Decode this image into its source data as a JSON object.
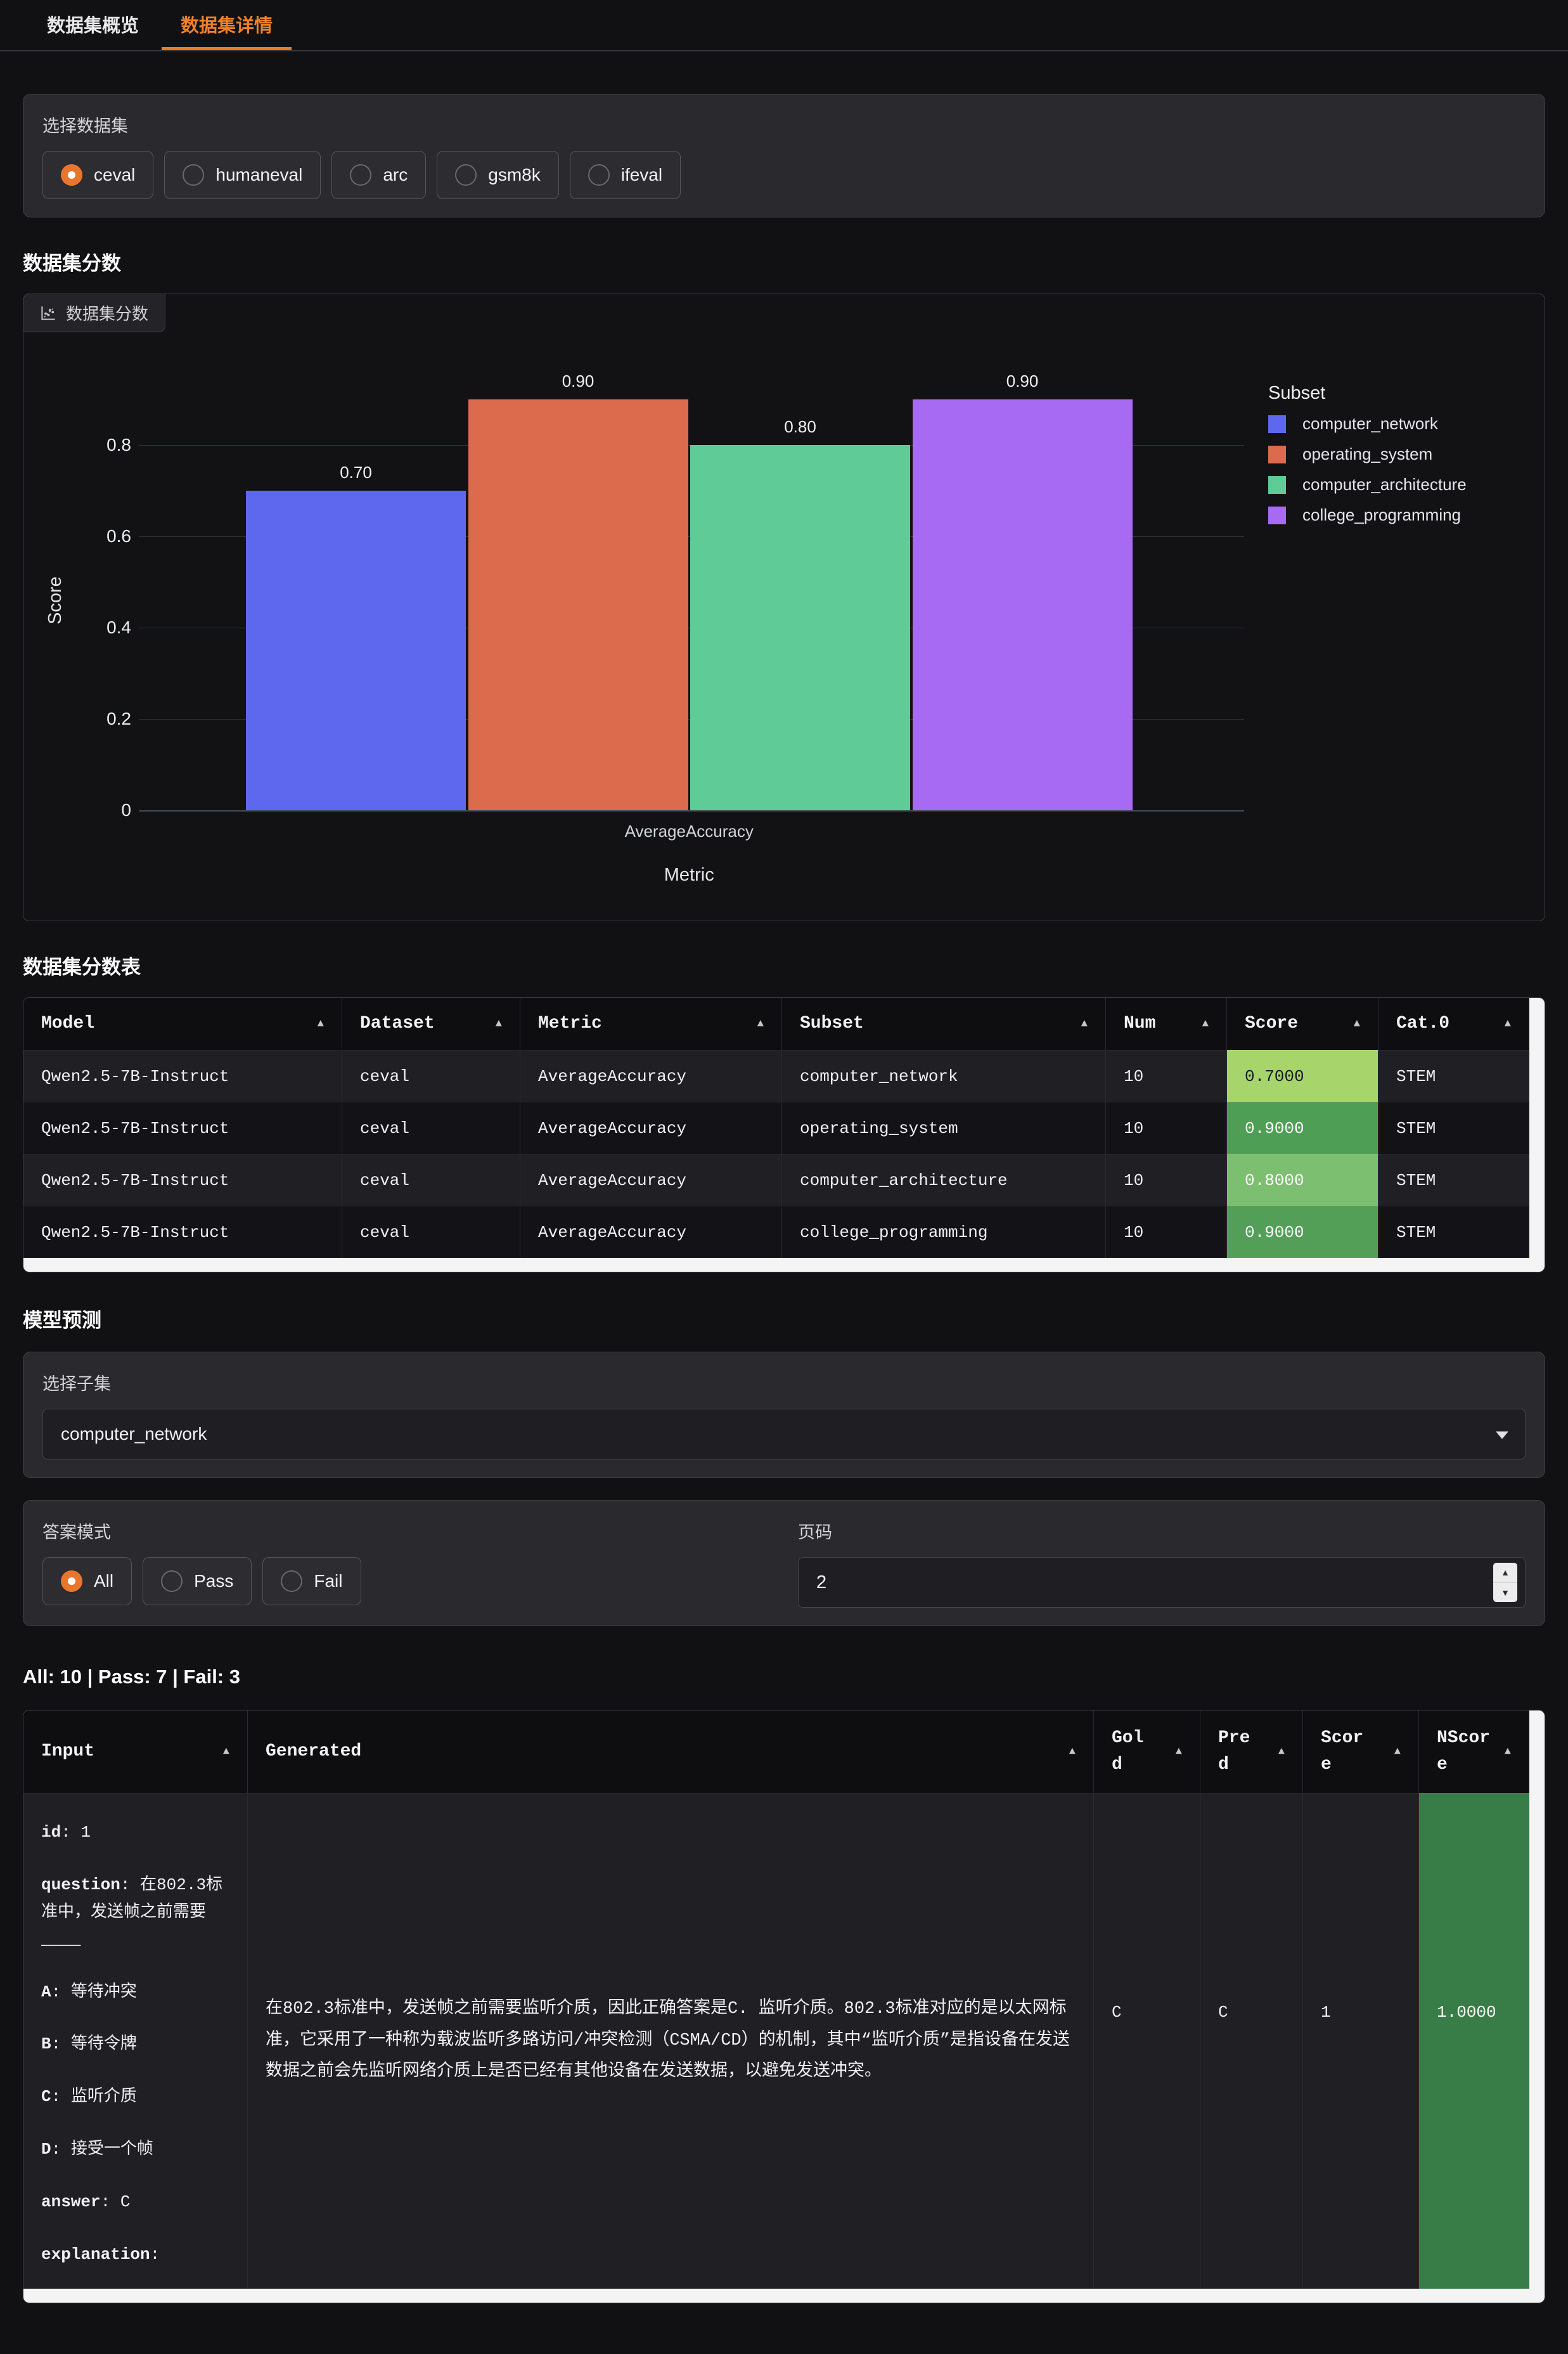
{
  "tabs": {
    "items": [
      {
        "label": "数据集概览",
        "active": false
      },
      {
        "label": "数据集详情",
        "active": true
      }
    ]
  },
  "dataset_selector": {
    "label": "选择数据集",
    "options": [
      "ceval",
      "humaneval",
      "arc",
      "gsm8k",
      "ifeval"
    ],
    "selected": "ceval"
  },
  "sections": {
    "score_heading": "数据集分数",
    "table_heading": "数据集分数表",
    "pred_heading": "模型预测"
  },
  "chart_panel": {
    "label": "数据集分数"
  },
  "chart_data": {
    "type": "bar",
    "title": "数据集分数",
    "categories": [
      "AverageAccuracy"
    ],
    "xlabel": "Metric",
    "ylabel": "Score",
    "ylim": [
      0,
      0.94
    ],
    "yticks": [
      0,
      0.2,
      0.4,
      0.6,
      0.8
    ],
    "grid": true,
    "legend_title": "Subset",
    "legend_position": "right",
    "series": [
      {
        "name": "computer_network",
        "values": [
          0.7
        ],
        "display": "0.70",
        "color": "#5d68ee"
      },
      {
        "name": "operating_system",
        "values": [
          0.9
        ],
        "display": "0.90",
        "color": "#dc6a4d"
      },
      {
        "name": "computer_architecture",
        "values": [
          0.8
        ],
        "display": "0.80",
        "color": "#5fcb97"
      },
      {
        "name": "college_programming",
        "values": [
          0.9
        ],
        "display": "0.90",
        "color": "#a76bf3"
      }
    ]
  },
  "score_table": {
    "columns": [
      "Model",
      "Dataset",
      "Metric",
      "Subset",
      "Num",
      "Score",
      "Cat.0"
    ],
    "rows": [
      {
        "model": "Qwen2.5-7B-Instruct",
        "dataset": "ceval",
        "metric": "AverageAccuracy",
        "subset": "computer_network",
        "num": "10",
        "score": "0.7000",
        "score_bg": "#a7d46b",
        "score_fg": "#17191d",
        "cat": "STEM"
      },
      {
        "model": "Qwen2.5-7B-Instruct",
        "dataset": "ceval",
        "metric": "AverageAccuracy",
        "subset": "operating_system",
        "num": "10",
        "score": "0.9000",
        "score_bg": "#4f9e55",
        "score_fg": "#ffffff",
        "cat": "STEM"
      },
      {
        "model": "Qwen2.5-7B-Instruct",
        "dataset": "ceval",
        "metric": "AverageAccuracy",
        "subset": "computer_architecture",
        "num": "10",
        "score": "0.8000",
        "score_bg": "#7cbf70",
        "score_fg": "#ffffff",
        "cat": "STEM"
      },
      {
        "model": "Qwen2.5-7B-Instruct",
        "dataset": "ceval",
        "metric": "AverageAccuracy",
        "subset": "college_programming",
        "num": "10",
        "score": "0.9000",
        "score_bg": "#539f58",
        "score_fg": "#ffffff",
        "cat": "STEM"
      }
    ]
  },
  "predictions": {
    "subset_label": "选择子集",
    "subset_value": "computer_network",
    "mode_label": "答案模式",
    "modes": [
      "All",
      "Pass",
      "Fail"
    ],
    "mode_selected": "All",
    "page_label": "页码",
    "page_value": "2",
    "summary": "All: 10 | Pass: 7 | Fail: 3"
  },
  "pred_table": {
    "columns": [
      "Input",
      "Generated",
      "Gold",
      "Pred",
      "Score",
      "NScore"
    ],
    "row": {
      "input_fields": [
        {
          "key": "id",
          "value": "1"
        },
        {
          "key": "question",
          "value": "在802.3标准中，发送帧之前需要____"
        },
        {
          "key": "A",
          "value": "等待冲突"
        },
        {
          "key": "B",
          "value": "等待令牌"
        },
        {
          "key": "C",
          "value": "监听介质"
        },
        {
          "key": "D",
          "value": "接受一个帧"
        },
        {
          "key": "answer",
          "value": "C"
        },
        {
          "key": "explanation",
          "value": ""
        }
      ],
      "generated": "在802.3标准中，发送帧之前需要监听介质，因此正确答案是C. 监听介质。802.3标准对应的是以太网标准，它采用了一种称为载波监听多路访问/冲突检测（CSMA/CD）的机制，其中“监听介质”是指设备在发送数据之前会先监听网络介质上是否已经有其他设备在发送数据，以避免发送冲突。",
      "gold": "C",
      "pred": "C",
      "score": "1",
      "nscore": "1.0000",
      "nscore_bg": "#387d47"
    }
  }
}
